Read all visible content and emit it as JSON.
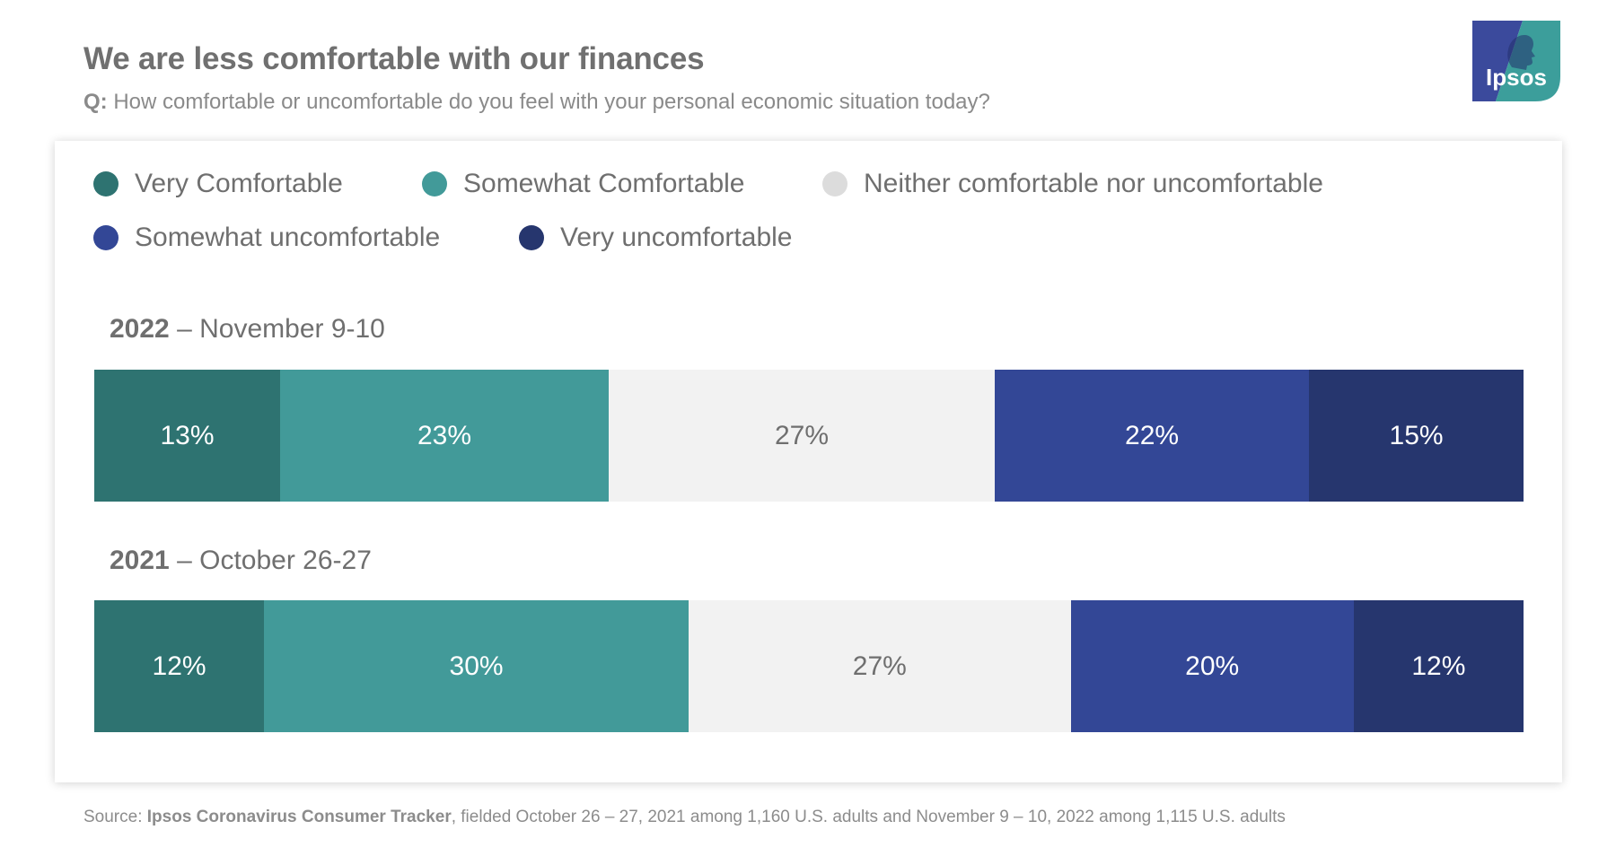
{
  "header": {
    "title": "We are less comfortable with our finances",
    "question_prefix": "Q:",
    "question": "How comfortable or uncomfortable do you feel with your personal economic situation today?"
  },
  "logo": {
    "text": "Ipsos",
    "colors": {
      "blue": "#3b4a9c",
      "teal": "#3c9e9b"
    }
  },
  "source": {
    "prefix": "Source: ",
    "name": "Ipsos Coronavirus Consumer Tracker",
    "detail": ", fielded October 26 – 27, 2021 among 1,160 U.S. adults and November 9 – 10, 2022 among 1,115 U.S. adults"
  },
  "chart_data": {
    "type": "bar",
    "orientation": "horizontal",
    "stacked": true,
    "legend_placement": "top-left",
    "categories": [
      {
        "year": "2022",
        "period": " – November 9-10"
      },
      {
        "year": "2021",
        "period": " – October 26-27"
      }
    ],
    "series": [
      {
        "name": "Very Comfortable",
        "color": "#2e7371",
        "values": [
          13,
          12
        ],
        "labels": [
          "13%",
          "12%"
        ]
      },
      {
        "name": "Somewhat Comfortable",
        "color": "#429a99",
        "values": [
          23,
          30
        ],
        "labels": [
          "23%",
          "30%"
        ]
      },
      {
        "name": "Neither comfortable nor uncomfortable",
        "color": "#f2f2f2",
        "legend_color": "#dcdcdc",
        "values": [
          27,
          27
        ],
        "labels": [
          "27%",
          "27%"
        ]
      },
      {
        "name": "Somewhat uncomfortable",
        "color": "#334796",
        "values": [
          22,
          20
        ],
        "labels": [
          "22%",
          "20%"
        ]
      },
      {
        "name": "Very uncomfortable",
        "color": "#26366e",
        "values": [
          15,
          12
        ],
        "labels": [
          "15%",
          "12%"
        ]
      }
    ]
  }
}
